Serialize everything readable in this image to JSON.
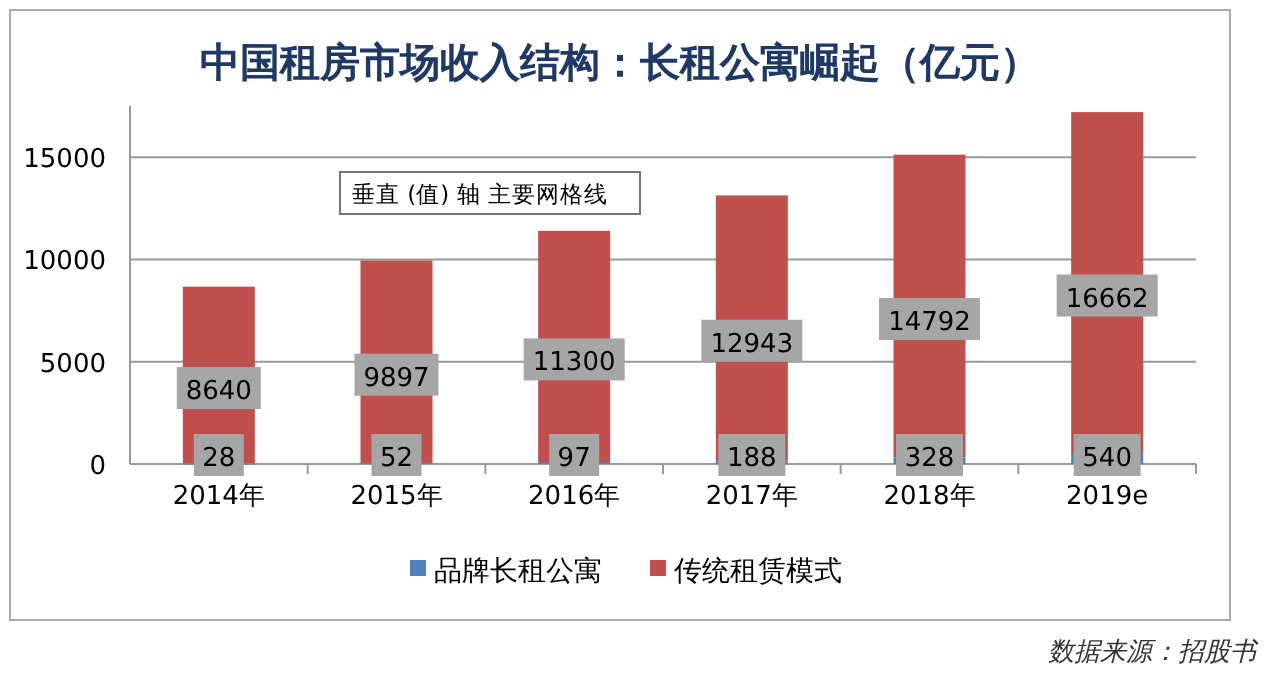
{
  "chart_data": {
    "type": "bar",
    "title": "中国租房市场收入结构：长租公寓崛起（亿元）",
    "categories": [
      "2014年",
      "2015年",
      "2016年",
      "2017年",
      "2018年",
      "2019e"
    ],
    "series": [
      {
        "name": "品牌长租公寓",
        "color": "#4f81bd",
        "values": [
          28,
          52,
          97,
          188,
          328,
          540
        ]
      },
      {
        "name": "传统租赁模式",
        "color": "#c0504d",
        "values": [
          8640,
          9897,
          11300,
          12943,
          14792,
          16662
        ]
      }
    ],
    "stacked": true,
    "ylim": [
      0,
      17500
    ],
    "yticks": [
      0,
      5000,
      10000,
      15000
    ],
    "grid": "y",
    "legend": "bottom",
    "data_labels": true,
    "annotations": [
      "垂直 (值) 轴 主要网格线",
      "数据来源：招股书"
    ]
  }
}
